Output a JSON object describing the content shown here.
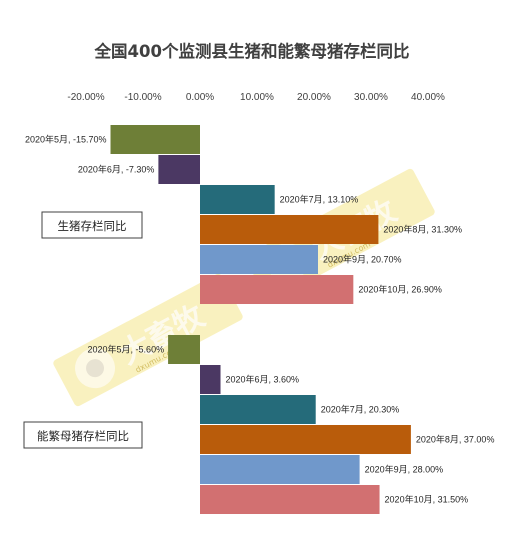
{
  "chart_data": {
    "type": "bar",
    "orientation": "horizontal",
    "title": "全国400个监测县生猪和能繁母猪存栏同比",
    "xlabel": "",
    "ylabel": "",
    "xlim": [
      -20,
      40
    ],
    "x_ticks": [
      "-20.00%",
      "-10.00%",
      "0.00%",
      "10.00%",
      "20.00%",
      "30.00%",
      "40.00%"
    ],
    "x_tick_values": [
      -20,
      -10,
      0,
      10,
      20,
      30,
      40
    ],
    "grid": false,
    "legend": "none",
    "groups": [
      {
        "name": "生猪存栏同比",
        "bars": [
          {
            "month": "2020年5月",
            "value": -15.7,
            "label": "2020年5月, -15.70%"
          },
          {
            "month": "2020年6月",
            "value": -7.3,
            "label": "2020年6月, -7.30%"
          },
          {
            "month": "2020年7月",
            "value": 13.1,
            "label": "2020年7月, 13.10%"
          },
          {
            "month": "2020年8月",
            "value": 31.3,
            "label": "2020年8月, 31.30%"
          },
          {
            "month": "2020年9月",
            "value": 20.7,
            "label": "2020年9月, 20.70%"
          },
          {
            "month": "2020年10月",
            "value": 26.9,
            "label": "2020年10月, 26.90%"
          }
        ]
      },
      {
        "name": "能繁母猪存栏同比",
        "bars": [
          {
            "month": "2020年5月",
            "value": -5.6,
            "label": "2020年5月, -5.60%"
          },
          {
            "month": "2020年6月",
            "value": 3.6,
            "label": "2020年6月, 3.60%"
          },
          {
            "month": "2020年7月",
            "value": 20.3,
            "label": "2020年7月, 20.30%"
          },
          {
            "month": "2020年8月",
            "value": 37.0,
            "label": "2020年8月, 37.00%"
          },
          {
            "month": "2020年9月",
            "value": 28.0,
            "label": "2020年9月, 28.00%"
          },
          {
            "month": "2020年10月",
            "value": 31.5,
            "label": "2020年10月, 31.50%"
          }
        ]
      }
    ],
    "series_colors": {
      "2020年5月": "#6e7f37",
      "2020年6月": "#4b3863",
      "2020年7月": "#256b7a",
      "2020年8月": "#b95c0b",
      "2020年9月": "#7098cb",
      "2020年10月": "#d27071"
    }
  },
  "watermark": {
    "text": "大畜牧",
    "url": "dxumu.com",
    "color": "#f2e27a"
  }
}
